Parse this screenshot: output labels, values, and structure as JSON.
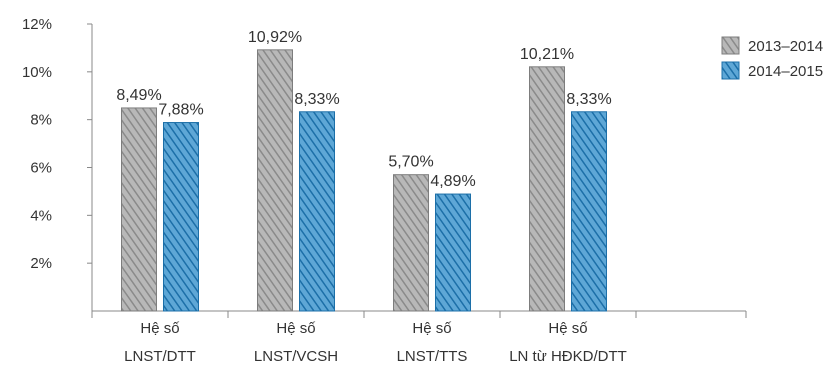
{
  "chart_data": {
    "type": "bar",
    "categories": [
      [
        "Hệ số",
        "LNST/DTT"
      ],
      [
        "Hệ số",
        "LNST/VCSH"
      ],
      [
        "Hệ số",
        "LNST/TTS"
      ],
      [
        "Hệ số",
        "LN từ HĐKD/DTT"
      ]
    ],
    "series": [
      {
        "name": "2013–2014",
        "values": [
          8.49,
          10.92,
          5.7,
          10.21
        ],
        "labels": [
          "8,49%",
          "10,92%",
          "5,70%",
          "10,21%"
        ],
        "color": "#999999"
      },
      {
        "name": "2014–2015",
        "values": [
          7.88,
          8.33,
          4.89,
          8.33
        ],
        "labels": [
          "7,88%",
          "8,33%",
          "4,89%",
          "8,33%"
        ],
        "color": "#1f78b4"
      }
    ],
    "yticks": [
      "12%",
      "10%",
      "8%",
      "6%",
      "4%",
      "2%"
    ],
    "ylim": [
      0,
      12
    ],
    "grid": false,
    "legend": "top-right"
  }
}
